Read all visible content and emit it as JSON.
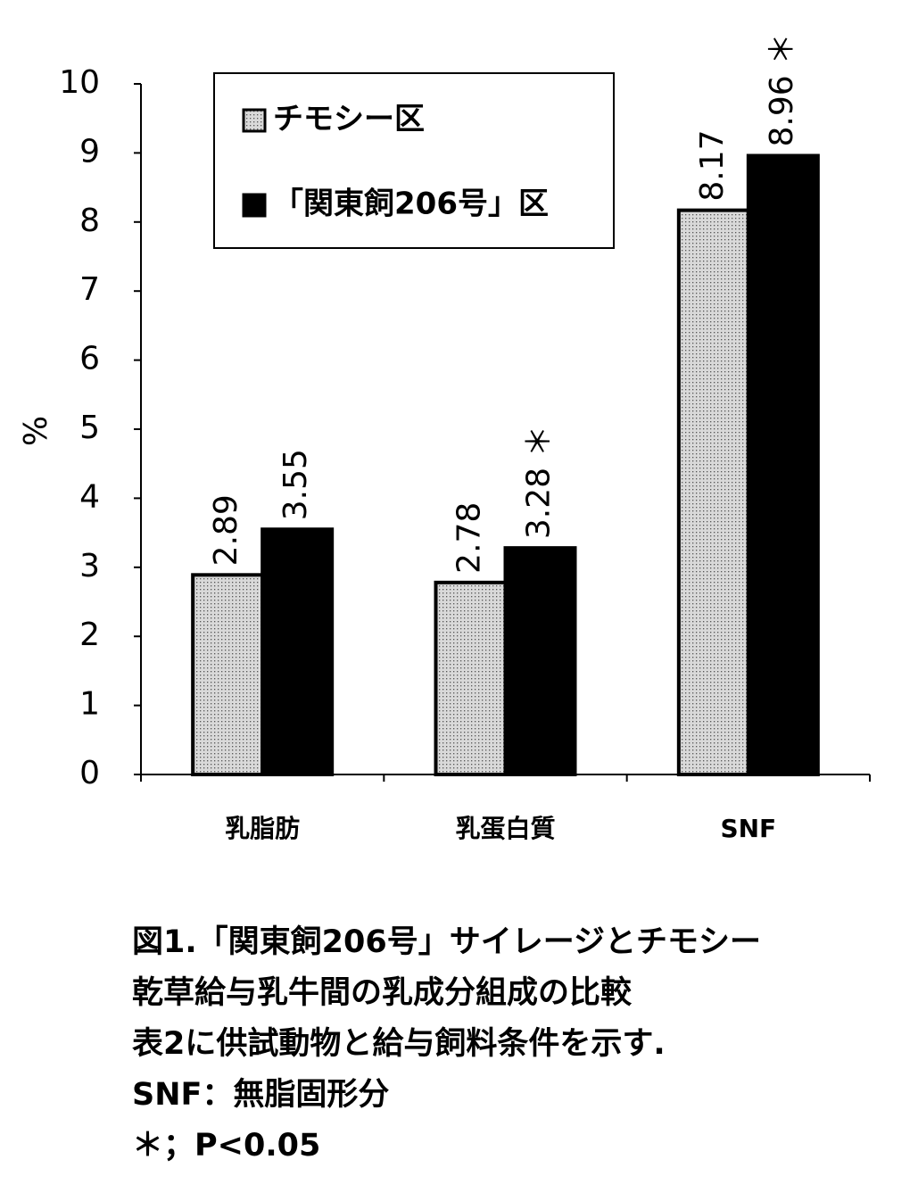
{
  "chart_data": {
    "type": "bar",
    "y_label": "%",
    "categories": [
      "乳脂肪",
      "乳蛋白質",
      "SNF"
    ],
    "series": [
      {
        "name": "チモシー区",
        "color": "#d9d9d9",
        "hatch": "dots",
        "values": [
          2.89,
          2.78,
          8.17
        ]
      },
      {
        "name": "「関東飼206号」区",
        "color": "#000000",
        "values": [
          3.55,
          3.28,
          8.96
        ],
        "value_labels": [
          "3.55",
          "3.28 ＊",
          "8.96 ＊"
        ]
      }
    ],
    "ylim": [
      0,
      10
    ],
    "yticks": [
      0,
      1,
      2,
      3,
      4,
      5,
      6,
      7,
      8,
      9,
      10
    ],
    "caption": [
      "図1.「関東飼206号」サイレージとチモシー",
      "乾草給与乳牛間の乳成分組成の比較",
      "表2に供試動物と給与飼料条件を示す.",
      "SNF：無脂固形分",
      "＊；P<0.05"
    ]
  }
}
